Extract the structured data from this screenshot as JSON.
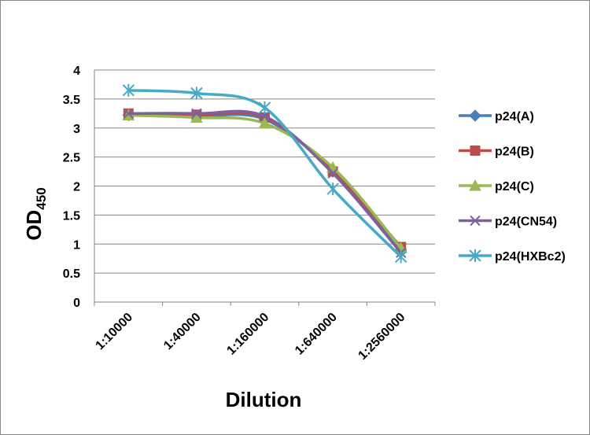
{
  "chart_data": {
    "type": "line",
    "title": "",
    "xlabel": "Dilution",
    "ylabel_main": "OD",
    "ylabel_sub": "450",
    "ylim": [
      0,
      4
    ],
    "yticks": [
      "0",
      "0.5",
      "1",
      "1.5",
      "2",
      "2.5",
      "3",
      "3.5",
      "4"
    ],
    "categories": [
      "1:10000",
      "1:40000",
      "1:160000",
      "1:640000",
      "1:2560000"
    ],
    "grid": true,
    "legend_position": "right",
    "series": [
      {
        "name": "p24(A)",
        "color": "#4a7ebb",
        "marker": "diamond",
        "values": [
          3.22,
          3.2,
          3.15,
          2.25,
          0.9
        ]
      },
      {
        "name": "p24(B)",
        "color": "#be4b48",
        "marker": "square",
        "values": [
          3.25,
          3.23,
          3.18,
          2.25,
          0.95
        ]
      },
      {
        "name": "p24(C)",
        "color": "#98b954",
        "marker": "triangle",
        "values": [
          3.22,
          3.18,
          3.08,
          2.32,
          0.93
        ]
      },
      {
        "name": "p24(CN54)",
        "color": "#7d60a0",
        "marker": "x",
        "values": [
          3.25,
          3.25,
          3.2,
          2.22,
          0.85
        ]
      },
      {
        "name": "p24(HXBc2)",
        "color": "#46aac5",
        "marker": "star",
        "values": [
          3.65,
          3.6,
          3.35,
          1.95,
          0.78
        ]
      }
    ]
  }
}
